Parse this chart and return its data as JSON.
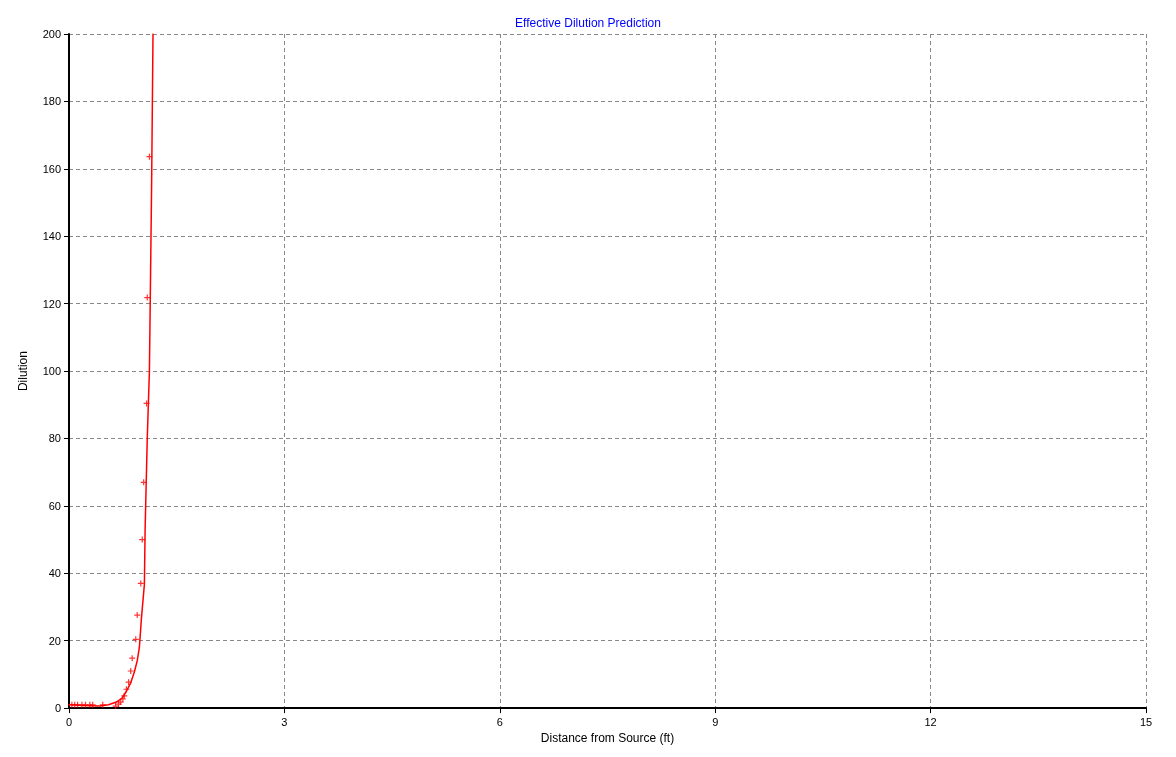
{
  "chart_data": {
    "type": "line",
    "title": "Effective Dilution Prediction",
    "xlabel": "Distance from Source (ft)",
    "ylabel": "Dilution",
    "xlim": [
      0,
      15
    ],
    "xticks": [
      0,
      3,
      6,
      9,
      12,
      15
    ],
    "ylim": [
      0,
      200
    ],
    "yticks": [
      0,
      20,
      40,
      60,
      80,
      100,
      120,
      140,
      160,
      180,
      200
    ],
    "grid": true,
    "series": [
      {
        "color": "#ff0000",
        "marker": "none",
        "line_style": "solid",
        "x": [
          0,
          0.2,
          0.43,
          0.55,
          0.66,
          0.74,
          0.8,
          0.86,
          0.91,
          0.95,
          0.98,
          1.01,
          1.05,
          1.06,
          1.09,
          1.12,
          1.15,
          1.17
        ],
        "values": [
          1,
          0.8,
          0.6,
          1,
          1.8,
          3,
          5,
          7.5,
          10.7,
          14,
          18,
          27,
          36.7,
          53,
          80,
          100,
          154,
          200
        ]
      },
      {
        "type": "scatter",
        "color": "#ff0000",
        "marker": "cross",
        "x": [
          0.04,
          0.08,
          0.12,
          0.18,
          0.23,
          0.29,
          0.33,
          0.47,
          0.65,
          0.69,
          0.72,
          0.75,
          0.77,
          0.8,
          0.83,
          0.86,
          0.88,
          0.93,
          0.95,
          1.0,
          1.02,
          1.04,
          1.08,
          1.09,
          1.12
        ],
        "values": [
          1,
          1,
          1,
          1,
          1,
          1,
          1,
          1,
          0.6,
          1.2,
          1.8,
          2.7,
          3.6,
          5.6,
          7.7,
          11,
          14.8,
          20.4,
          27.6,
          37,
          50,
          67,
          90.4,
          121.8,
          163.6
        ]
      }
    ]
  }
}
